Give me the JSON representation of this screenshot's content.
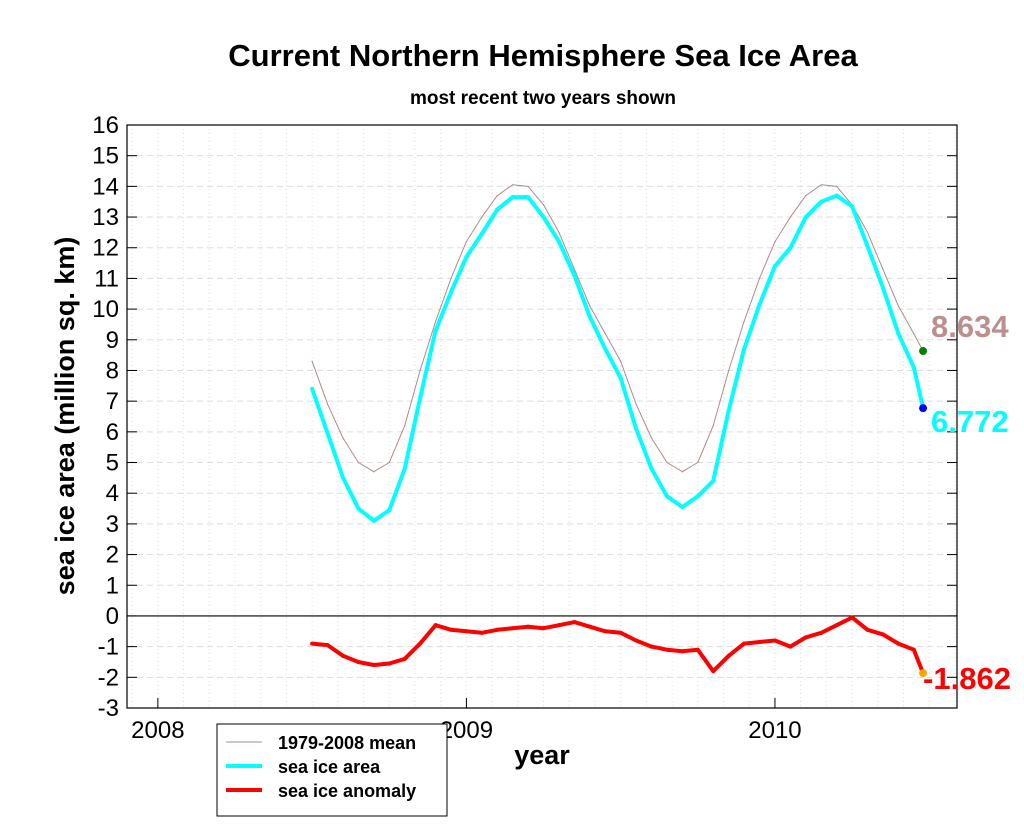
{
  "chart_data": {
    "type": "line",
    "title": "Current Northern Hemisphere Sea Ice Area",
    "subtitle": "most recent two years shown",
    "xlabel": "year",
    "ylabel": "sea ice area (million sq. km)",
    "xlim": [
      2007.9,
      2010.59
    ],
    "ylim": [
      -3,
      16
    ],
    "x_ticks": [
      "2008",
      "2009",
      "2010"
    ],
    "y_ticks": [
      "16",
      "15",
      "14",
      "13",
      "12",
      "11",
      "10",
      "9",
      "8",
      "7",
      "6",
      "5",
      "4",
      "3",
      "2",
      "1",
      "0",
      "-1",
      "-2",
      "-3"
    ],
    "grid": true,
    "legend_position": "bottom-left",
    "x": [
      2008.5,
      2008.55,
      2008.6,
      2008.65,
      2008.7,
      2008.75,
      2008.8,
      2008.85,
      2008.9,
      2008.95,
      2009.0,
      2009.05,
      2009.1,
      2009.15,
      2009.2,
      2009.25,
      2009.3,
      2009.35,
      2009.4,
      2009.45,
      2009.5,
      2009.55,
      2009.6,
      2009.65,
      2009.7,
      2009.75,
      2009.8,
      2009.85,
      2009.9,
      2009.95,
      2010.0,
      2010.05,
      2010.1,
      2010.15,
      2010.2,
      2010.25,
      2010.3,
      2010.35,
      2010.4,
      2010.45,
      2010.48
    ],
    "series": [
      {
        "name": "1979-2008 mean",
        "color": "#b08a88",
        "values": [
          8.3,
          6.9,
          5.8,
          5.0,
          4.7,
          5.0,
          6.2,
          8.0,
          9.6,
          11.0,
          12.2,
          13.0,
          13.7,
          14.05,
          14.0,
          13.4,
          12.5,
          11.3,
          10.1,
          9.2,
          8.3,
          6.9,
          5.8,
          5.0,
          4.7,
          5.0,
          6.2,
          8.0,
          9.6,
          11.0,
          12.2,
          13.0,
          13.7,
          14.05,
          14.0,
          13.4,
          12.5,
          11.3,
          10.1,
          9.2,
          8.634
        ]
      },
      {
        "name": "sea ice area",
        "color": "#00ffff",
        "values": [
          7.4,
          5.95,
          4.5,
          3.5,
          3.1,
          3.45,
          4.8,
          7.1,
          9.3,
          10.55,
          11.7,
          12.45,
          13.25,
          13.65,
          13.65,
          13.0,
          12.2,
          11.1,
          9.75,
          8.7,
          7.75,
          6.1,
          4.8,
          3.9,
          3.55,
          3.9,
          4.4,
          6.7,
          8.7,
          10.15,
          11.4,
          12.0,
          13.0,
          13.5,
          13.7,
          13.35,
          12.05,
          10.7,
          9.2,
          8.1,
          6.772
        ]
      },
      {
        "name": "sea ice anomaly",
        "color": "#ff0000",
        "values": [
          -0.9,
          -0.95,
          -1.3,
          -1.5,
          -1.6,
          -1.55,
          -1.4,
          -0.9,
          -0.3,
          -0.45,
          -0.5,
          -0.55,
          -0.45,
          -0.4,
          -0.35,
          -0.4,
          -0.3,
          -0.2,
          -0.35,
          -0.5,
          -0.55,
          -0.8,
          -1.0,
          -1.1,
          -1.15,
          -1.1,
          -1.8,
          -1.3,
          -0.9,
          -0.85,
          -0.8,
          -1.0,
          -0.7,
          -0.55,
          -0.3,
          -0.05,
          -0.45,
          -0.6,
          -0.9,
          -1.1,
          -1.862
        ]
      }
    ],
    "end_labels": [
      {
        "text": "8.634",
        "value": 8.634,
        "color": "#bc8f8f",
        "marker_color": "#008000"
      },
      {
        "text": "6.772",
        "value": 6.772,
        "color": "#00ffff",
        "marker_color": "#0000ff"
      },
      {
        "text": "-1.862",
        "value": -1.862,
        "color": "#ff0000",
        "marker_color": "#ffa500"
      }
    ]
  }
}
